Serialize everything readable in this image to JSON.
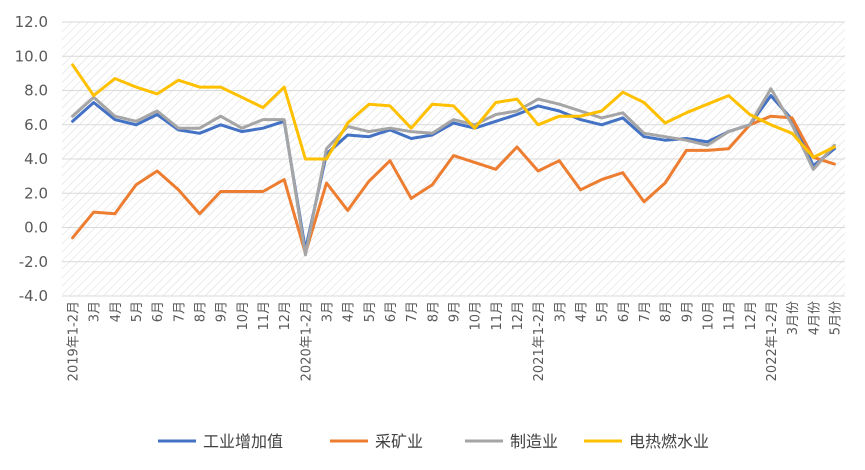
{
  "chart_data": {
    "type": "line",
    "title": "",
    "xlabel": "",
    "ylabel": "",
    "ylim": [
      -4.0,
      12.0
    ],
    "yticks": [
      "12.0",
      "10.0",
      "8.0",
      "6.0",
      "4.0",
      "2.0",
      "0.0",
      "-2.0",
      "-4.0"
    ],
    "grid": true,
    "legend_position": "bottom",
    "categories": [
      "2019年1-2月",
      "3月",
      "4月",
      "5月",
      "6月",
      "7月",
      "8月",
      "9月",
      "10月",
      "11月",
      "12月",
      "2020年1-2月",
      "3月",
      "4月",
      "5月",
      "6月",
      "7月",
      "8月",
      "9月",
      "10月",
      "11月",
      "12月",
      "2021年1-2月",
      "3月",
      "4月",
      "5月",
      "6月",
      "7月",
      "8月",
      "9月",
      "10月",
      "11月",
      "12月",
      "2022年1-2月",
      "3月份",
      "4月份",
      "5月份"
    ],
    "series": [
      {
        "name": "工业增加值",
        "color": "#4472C4",
        "values": [
          6.2,
          7.3,
          6.3,
          6.0,
          6.6,
          5.7,
          5.5,
          6.0,
          5.6,
          5.8,
          6.2,
          -1.3,
          4.3,
          5.4,
          5.3,
          5.7,
          5.2,
          5.4,
          6.1,
          5.8,
          6.2,
          6.6,
          7.1,
          6.8,
          6.3,
          6.0,
          6.4,
          5.3,
          5.1,
          5.2,
          5.0,
          5.6,
          6.0,
          7.7,
          6.3,
          3.6,
          4.6
        ]
      },
      {
        "name": "采矿业",
        "color": "#ED7D31",
        "values": [
          -0.6,
          0.9,
          0.8,
          2.5,
          3.3,
          2.2,
          0.8,
          2.1,
          2.1,
          2.1,
          2.8,
          -1.5,
          2.6,
          1.0,
          2.7,
          3.9,
          1.7,
          2.5,
          4.2,
          3.8,
          3.4,
          4.7,
          3.3,
          3.9,
          2.2,
          2.8,
          3.2,
          1.5,
          2.6,
          4.5,
          4.5,
          4.6,
          6.0,
          6.5,
          6.4,
          4.1,
          3.7
        ]
      },
      {
        "name": "制造业",
        "color": "#A5A5A5",
        "values": [
          6.5,
          7.6,
          6.5,
          6.2,
          6.8,
          5.8,
          5.8,
          6.5,
          5.8,
          6.3,
          6.3,
          -1.6,
          4.6,
          5.9,
          5.6,
          5.8,
          5.6,
          5.5,
          6.3,
          6.0,
          6.6,
          6.8,
          7.5,
          7.2,
          6.8,
          6.4,
          6.7,
          5.5,
          5.3,
          5.1,
          4.8,
          5.6,
          6.0,
          8.1,
          6.0,
          3.4,
          4.8
        ]
      },
      {
        "name": "电热燃水业",
        "color": "#FFC000",
        "values": [
          9.5,
          7.7,
          8.7,
          8.2,
          7.8,
          8.6,
          8.2,
          8.2,
          7.6,
          7.0,
          8.2,
          4.0,
          4.0,
          6.1,
          7.2,
          7.1,
          5.8,
          7.2,
          7.1,
          5.8,
          7.3,
          7.5,
          6.0,
          6.5,
          6.5,
          6.8,
          7.9,
          7.3,
          6.1,
          6.7,
          7.2,
          7.7,
          6.6,
          6.0,
          5.5,
          4.1,
          4.7
        ]
      }
    ]
  }
}
